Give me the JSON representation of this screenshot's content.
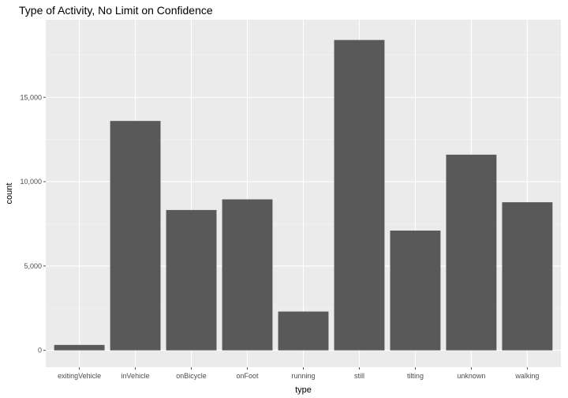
{
  "chart_data": {
    "type": "bar",
    "title": "Type of Activity, No Limit on Confidence",
    "xlabel": "type",
    "ylabel": "count",
    "categories": [
      "exitingVehicle",
      "inVehicle",
      "onBicycle",
      "onFoot",
      "running",
      "still",
      "tilting",
      "unknown",
      "walking"
    ],
    "values": [
      320,
      13600,
      8320,
      8950,
      2300,
      18400,
      7100,
      11600,
      8780
    ],
    "ylim": [
      -1000,
      19600
    ],
    "yticks": [
      0,
      5000,
      10000,
      15000
    ],
    "ytick_labels": [
      "0",
      "5,000",
      "10,000",
      "15,000"
    ],
    "grid": true,
    "legend": "none",
    "colors": {
      "bar": "#595959",
      "panel": "#ebebeb",
      "grid_major": "#ffffff",
      "grid_minor": "#f5f5f5",
      "tick": "#4d4d4d"
    }
  }
}
